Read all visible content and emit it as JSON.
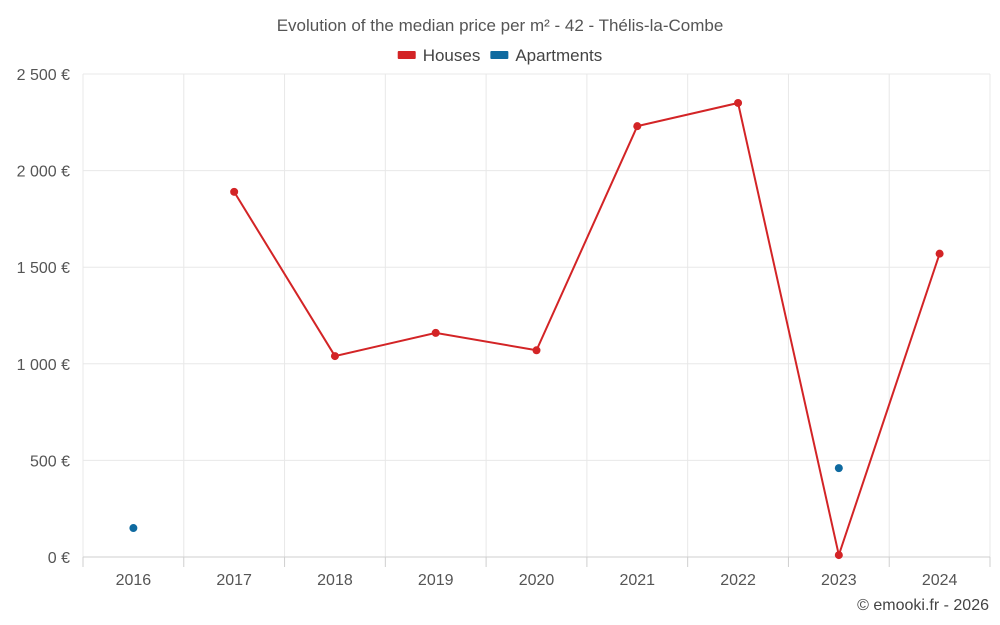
{
  "chart_data": {
    "type": "line",
    "title": "Evolution of the median price per m² - 42 - Thélis-la-Combe",
    "categories": [
      "2016",
      "2017",
      "2018",
      "2019",
      "2020",
      "2021",
      "2022",
      "2023",
      "2024"
    ],
    "series": [
      {
        "name": "Houses",
        "color": "#d32426",
        "values": [
          null,
          1890,
          1040,
          1160,
          1070,
          2230,
          2350,
          10,
          1570
        ]
      },
      {
        "name": "Apartments",
        "color": "#0f6aa0",
        "values": [
          150,
          null,
          null,
          null,
          null,
          null,
          null,
          460,
          null
        ]
      }
    ],
    "ylim": [
      0,
      2500
    ],
    "yticks": [
      0,
      500,
      1000,
      1500,
      2000,
      2500
    ],
    "ytick_labels": [
      "0 €",
      "500 €",
      "1 000 €",
      "1 500 €",
      "2 000 €",
      "2 500 €"
    ],
    "grid": true,
    "legend_position": "top-center"
  },
  "credit": "© emooki.fr - 2026"
}
